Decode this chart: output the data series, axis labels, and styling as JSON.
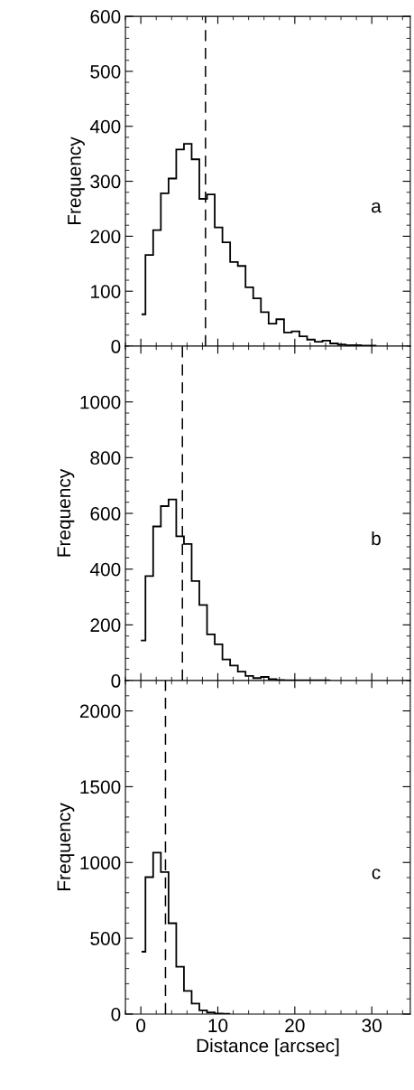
{
  "chart_data": [
    {
      "type": "histogram",
      "ylabel": "Frequency",
      "annotations": [
        "a"
      ],
      "tick_labels": "y",
      "color": "#000000",
      "bins": [
        0.1,
        0.6,
        1.6,
        2.6,
        3.6,
        4.6,
        5.6,
        6.6,
        7.6,
        8.6,
        9.6,
        10.6,
        11.6,
        12.6,
        13.6,
        14.6,
        15.6,
        16.6,
        17.6,
        18.6,
        19.6,
        20.6,
        21.6,
        22.6,
        23.6,
        24.6,
        25.6,
        26.6,
        27.6,
        28.6,
        29.6,
        30.6
      ],
      "values": [
        58,
        166,
        211,
        278,
        305,
        358,
        368,
        340,
        268,
        276,
        216,
        189,
        153,
        146,
        107,
        87,
        62,
        41,
        49,
        25,
        27,
        18,
        12,
        8,
        10,
        5,
        3,
        2,
        2,
        1,
        1
      ],
      "xlim": [
        -2,
        35
      ],
      "xticks": [
        0,
        10,
        20,
        30
      ],
      "ylim": [
        0,
        600
      ],
      "yticks": [
        0,
        100,
        200,
        300,
        400,
        500,
        600
      ],
      "ref_lines": [
        {
          "axis": "x",
          "value": 8.4,
          "line_style": "dashed",
          "color": "#000000"
        }
      ]
    },
    {
      "type": "histogram",
      "ylabel": "Frequency",
      "annotations": [
        "b"
      ],
      "tick_labels": "y",
      "color": "#000000",
      "bins": [
        0.0,
        0.6,
        1.6,
        2.6,
        3.6,
        4.6,
        5.6,
        6.6,
        7.6,
        8.6,
        9.6,
        10.6,
        11.6,
        12.6,
        13.6,
        14.6,
        15.6,
        16.6,
        17.6,
        18.6,
        19.6,
        20.6,
        21.6,
        22.6,
        23.6,
        24.6
      ],
      "values": [
        144,
        375,
        553,
        626,
        650,
        518,
        490,
        357,
        271,
        166,
        130,
        76,
        54,
        32,
        17,
        9,
        13,
        5,
        2,
        1,
        1,
        1,
        1,
        1,
        1
      ],
      "xlim": [
        -2,
        35
      ],
      "xticks": [
        0,
        10,
        20,
        30
      ],
      "ylim": [
        0,
        1200
      ],
      "yticks": [
        0,
        200,
        400,
        600,
        800,
        1000
      ],
      "ref_lines": [
        {
          "axis": "x",
          "value": 5.4,
          "line_style": "dashed",
          "color": "#000000"
        }
      ]
    },
    {
      "type": "histogram",
      "xlabel": "Distance [arcsec]",
      "ylabel": "Frequency",
      "annotations": [
        "c"
      ],
      "color": "#000000",
      "bins": [
        0.1,
        0.6,
        1.6,
        2.6,
        3.6,
        4.6,
        5.6,
        6.6,
        7.6,
        8.6,
        9.6,
        10.6,
        11.6
      ],
      "values": [
        411,
        903,
        1065,
        937,
        599,
        312,
        153,
        69,
        24,
        10,
        3,
        1
      ],
      "xlim": [
        -2,
        35
      ],
      "xticks": [
        0,
        10,
        20,
        30
      ],
      "ylim": [
        0,
        2200
      ],
      "yticks": [
        0,
        500,
        1000,
        1500,
        2000
      ],
      "ref_lines": [
        {
          "axis": "x",
          "value": 3.2,
          "line_style": "dashed",
          "color": "#000000"
        }
      ]
    }
  ]
}
